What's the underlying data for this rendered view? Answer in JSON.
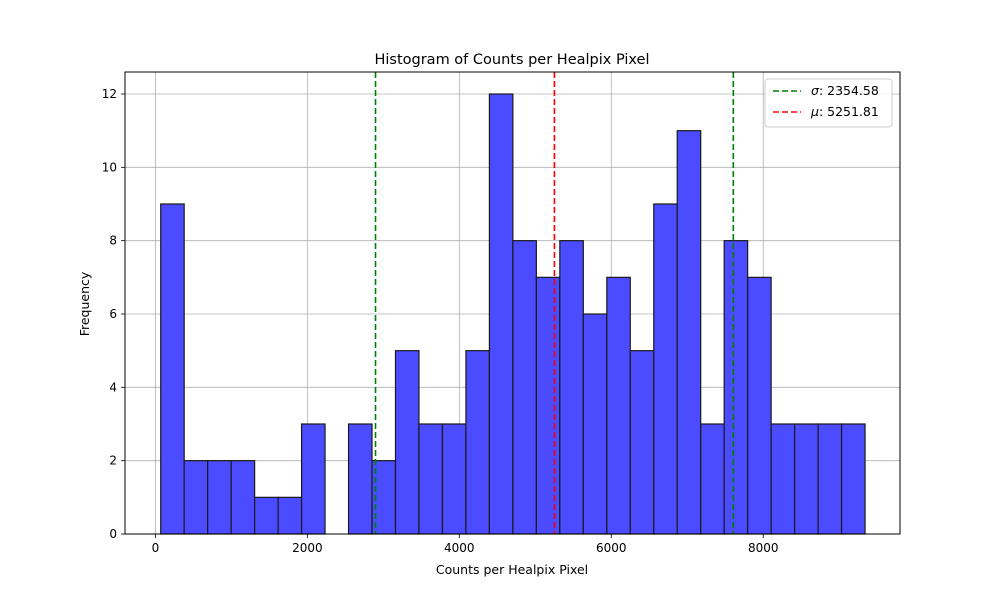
{
  "chart_data": {
    "type": "bar",
    "title": "Histogram of Counts per Healpix Pixel",
    "xlabel": "Counts per Healpix Pixel",
    "ylabel": "Frequency",
    "xlim": [
      -400,
      9800
    ],
    "ylim": [
      0,
      12.6
    ],
    "grid": true,
    "bar_color": "#4b4bff",
    "bar_edge_color": "#1a1a1a",
    "x_ticks": [
      0,
      2000,
      4000,
      6000,
      8000
    ],
    "x_tick_labels": [
      "0",
      "2000",
      "4000",
      "6000",
      "8000"
    ],
    "y_ticks": [
      0,
      2,
      4,
      6,
      8,
      10,
      12
    ],
    "y_tick_labels": [
      "0",
      "2",
      "4",
      "6",
      "8",
      "10",
      "12"
    ],
    "bin_start": 70,
    "bin_width": 309,
    "values": [
      9,
      2,
      2,
      2,
      1,
      1,
      3,
      0,
      3,
      2,
      5,
      3,
      3,
      5,
      12,
      8,
      7,
      8,
      6,
      7,
      5,
      9,
      11,
      3,
      8,
      7,
      3,
      3,
      3,
      3
    ],
    "vlines": [
      {
        "x": 2897.23,
        "color": "#008000",
        "style": "dashed",
        "in_legend": false
      },
      {
        "x": 5251.81,
        "color": "#ff0000",
        "style": "dashed",
        "in_legend": true
      },
      {
        "x": 7606.39,
        "color": "#008000",
        "style": "dashed",
        "in_legend": false
      }
    ],
    "legend": {
      "placement": "top-right",
      "entries": [
        {
          "symbol": "σ",
          "label": ": 2354.58",
          "color": "#008000"
        },
        {
          "symbol": "μ",
          "label": ": 5251.81",
          "color": "#ff0000"
        }
      ]
    }
  }
}
